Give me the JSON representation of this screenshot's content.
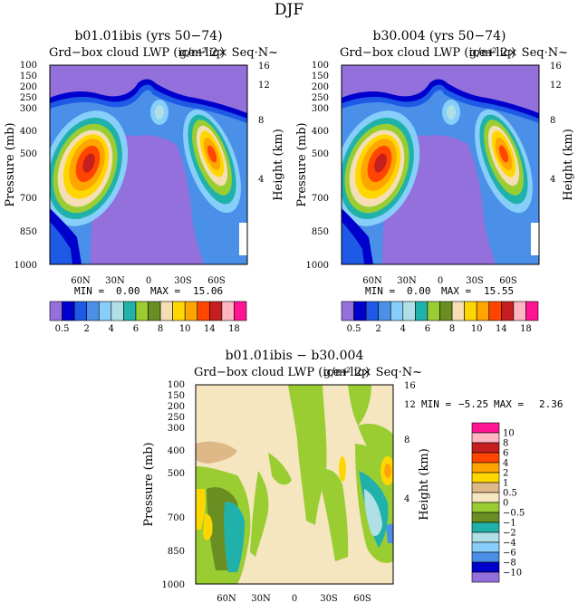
{
  "figure_title": "DJF",
  "panels": [
    {
      "title": "b01.01ibis (yrs 50−74)",
      "subtitle": "Grd−box cloud LWP (ice+liq)",
      "subtitle_overlap": "g/m² 2× Seq·N~",
      "ylabel": "Pressure (mb)",
      "y2label": "Height (km)",
      "min_label": "MIN =",
      "min_value": "0.00",
      "max_label": "MAX =",
      "max_value": "15.06"
    },
    {
      "title": "b30.004 (yrs 50−74)",
      "subtitle": "Grd−box cloud LWP (ice+liq)",
      "subtitle_overlap": "g/m² 2× Seq·N~",
      "ylabel": "Pressure (mb)",
      "y2label": "Height (km)",
      "min_label": "MIN =",
      "min_value": "0.00",
      "max_label": "MAX =",
      "max_value": "15.55"
    },
    {
      "title": "b01.01ibis − b30.004",
      "subtitle": "Grd−box cloud LWP (ice+liq)",
      "subtitle_overlap": "g/m² 2× Seq·N~",
      "ylabel": "Pressure (mb)",
      "y2label": "Height (km)",
      "min_label": "MIN =",
      "min_value": "−5.25",
      "max_label": "MAX =",
      "max_value": "2.36"
    }
  ],
  "chart_data": [
    {
      "type": "heatmap",
      "title": "b01.01ibis (yrs 50−74)",
      "x_ticks": [
        "60N",
        "30N",
        "0",
        "30S",
        "60S"
      ],
      "y_ticks": [
        "100",
        "150",
        "200",
        "250",
        "300",
        "400",
        "500",
        "700",
        "850",
        "1000"
      ],
      "y2_ticks": [
        "16",
        "12",
        "8",
        "4"
      ],
      "ylabel": "Pressure (mb)",
      "y2label": "Height (km)",
      "min": 0.0,
      "max": 15.06,
      "levels": [
        "0.5",
        "1",
        "2",
        "3",
        "4",
        "5",
        "6",
        "7",
        "8",
        "9",
        "10",
        "12",
        "14",
        "16",
        "18"
      ],
      "level_labels": [
        "0.5",
        "2",
        "4",
        "6",
        "8",
        "10",
        "14",
        "18"
      ],
      "colors": [
        "#9370db",
        "#0000cd",
        "#1e5ae6",
        "#4a90e8",
        "#87cefa",
        "#b0e0e6",
        "#20b2aa",
        "#9acd32",
        "#6b8e23",
        "#f5deb3",
        "#ffd700",
        "#ffa500",
        "#ff4500",
        "#c41e1e",
        "#ffb6c1",
        "#ff1493"
      ],
      "peaks": [
        {
          "lat": "60N",
          "pressure_mb": 520,
          "value": 15.06
        },
        {
          "lat": "60S",
          "pressure_mb": 500,
          "value": 12
        }
      ]
    },
    {
      "type": "heatmap",
      "title": "b30.004 (yrs 50−74)",
      "x_ticks": [
        "60N",
        "30N",
        "0",
        "30S",
        "60S"
      ],
      "y_ticks": [
        "100",
        "150",
        "200",
        "250",
        "300",
        "400",
        "500",
        "700",
        "850",
        "1000"
      ],
      "y2_ticks": [
        "16",
        "12",
        "8",
        "4"
      ],
      "ylabel": "Pressure (mb)",
      "y2label": "Height (km)",
      "min": 0.0,
      "max": 15.55,
      "levels": [
        "0.5",
        "1",
        "2",
        "3",
        "4",
        "5",
        "6",
        "7",
        "8",
        "9",
        "10",
        "12",
        "14",
        "16",
        "18"
      ],
      "level_labels": [
        "0.5",
        "2",
        "4",
        "6",
        "8",
        "10",
        "14",
        "18"
      ],
      "colors": [
        "#9370db",
        "#0000cd",
        "#1e5ae6",
        "#4a90e8",
        "#87cefa",
        "#b0e0e6",
        "#20b2aa",
        "#9acd32",
        "#6b8e23",
        "#f5deb3",
        "#ffd700",
        "#ffa500",
        "#ff4500",
        "#c41e1e",
        "#ffb6c1",
        "#ff1493"
      ],
      "peaks": [
        {
          "lat": "60N",
          "pressure_mb": 520,
          "value": 15.55
        },
        {
          "lat": "60S",
          "pressure_mb": 500,
          "value": 12
        }
      ]
    },
    {
      "type": "heatmap",
      "title": "b01.01ibis − b30.004",
      "x_ticks": [
        "60N",
        "30N",
        "0",
        "30S",
        "60S"
      ],
      "y_ticks": [
        "100",
        "150",
        "200",
        "250",
        "300",
        "400",
        "500",
        "700",
        "850",
        "1000"
      ],
      "y2_ticks": [
        "16",
        "12",
        "8",
        "4"
      ],
      "ylabel": "Pressure (mb)",
      "y2label": "Height (km)",
      "min": -5.25,
      "max": 2.36,
      "levels": [
        "10",
        "8",
        "6",
        "4",
        "2",
        "1",
        "0.5",
        "0",
        "−0.5",
        "−1",
        "−2",
        "−4",
        "−6",
        "−8",
        "−10"
      ],
      "colors": [
        "#ff1493",
        "#ffb6c1",
        "#c41e1e",
        "#ff4500",
        "#ffa500",
        "#ffd700",
        "#deb887",
        "#f5e6c0",
        "#9acd32",
        "#6b8e23",
        "#20b2aa",
        "#b0e0e6",
        "#87cefa",
        "#4a90e8",
        "#0000cd",
        "#9370db"
      ]
    }
  ]
}
